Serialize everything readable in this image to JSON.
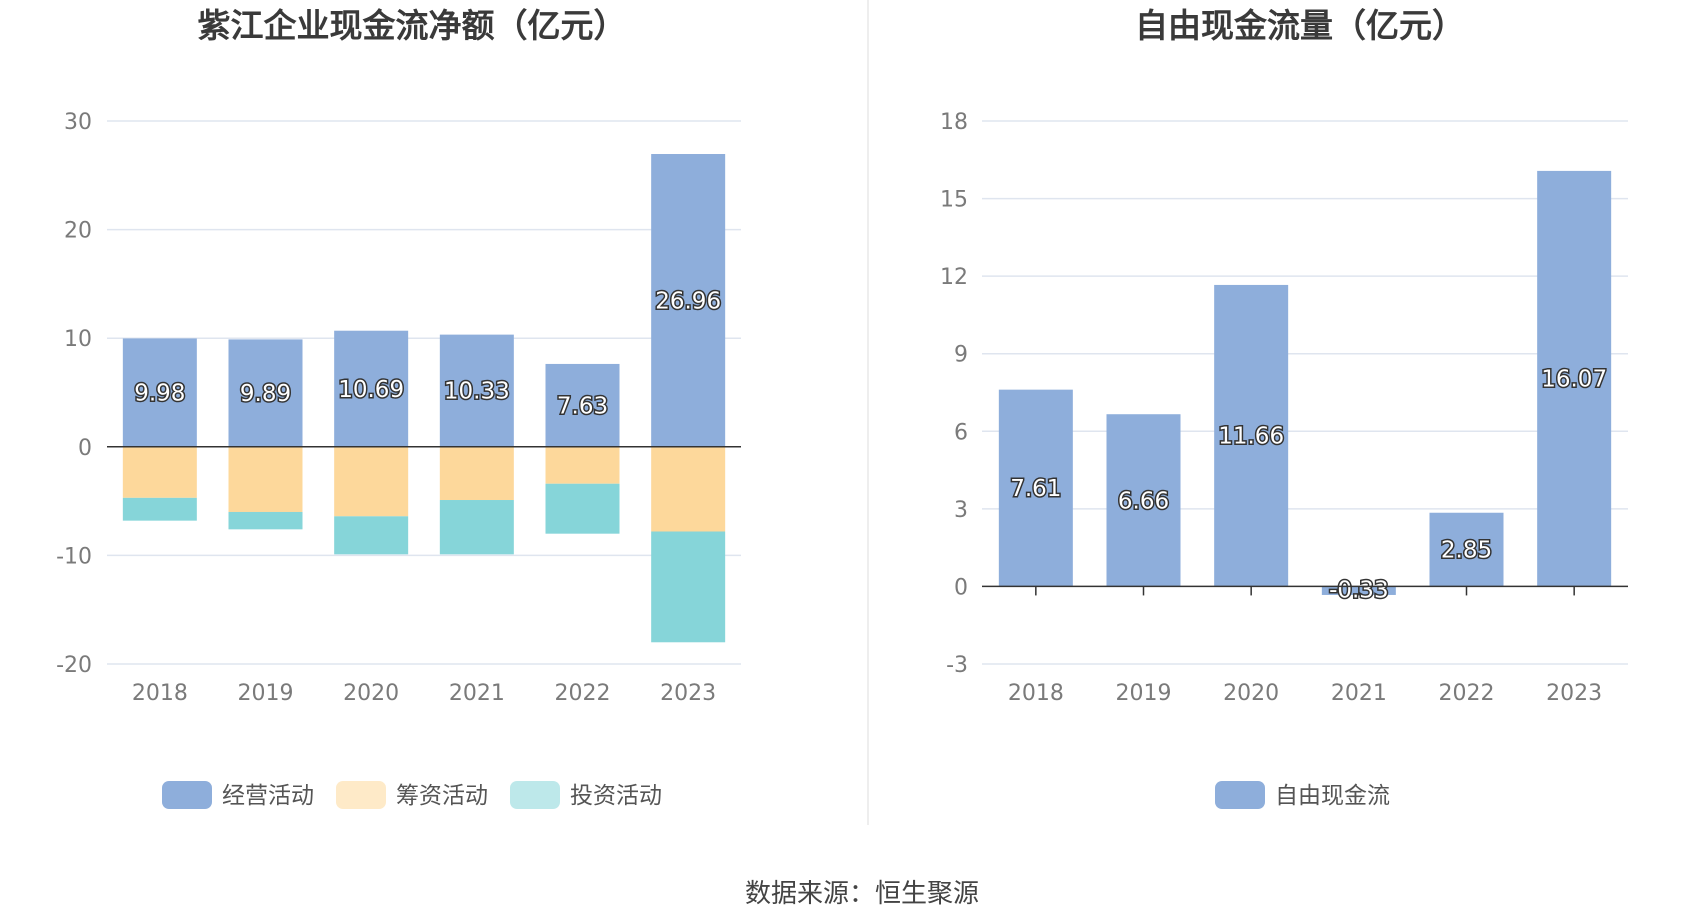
{
  "source_text": "数据来源：恒生聚源",
  "colors": {
    "operating": "#8eaedb",
    "financing": "#fdd89b",
    "investing": "#86d5d9",
    "free_cash": "#8eaedb",
    "grid": "#dfe5ef",
    "axis": "#333333"
  },
  "chart_data": [
    {
      "type": "bar",
      "stacked": true,
      "title": "紫江企业现金流净额（亿元）",
      "categories": [
        "2018",
        "2019",
        "2020",
        "2021",
        "2022",
        "2023"
      ],
      "ylim": [
        -20,
        30
      ],
      "yticks": [
        30,
        20,
        10,
        0,
        -10,
        -20
      ],
      "legend_position": "bottom",
      "series": [
        {
          "name": "经营活动",
          "values": [
            9.98,
            9.89,
            10.69,
            10.33,
            7.63,
            26.96
          ],
          "labels": [
            "9.98",
            "9.89",
            "10.69",
            "10.33",
            "7.63",
            "26.96"
          ],
          "color_key": "operating"
        },
        {
          "name": "筹资活动",
          "values": [
            -4.7,
            -6.0,
            -6.4,
            -4.9,
            -3.4,
            -7.8
          ],
          "color_key": "financing"
        },
        {
          "name": "投资活动",
          "values": [
            -2.1,
            -1.6,
            -3.5,
            -5.0,
            -4.6,
            -10.2
          ],
          "color_key": "investing"
        }
      ]
    },
    {
      "type": "bar",
      "title": "自由现金流量（亿元）",
      "categories": [
        "2018",
        "2019",
        "2020",
        "2021",
        "2022",
        "2023"
      ],
      "ylim": [
        -3,
        18
      ],
      "yticks": [
        18,
        15,
        12,
        9,
        6,
        3,
        0,
        -3
      ],
      "legend_position": "bottom",
      "series": [
        {
          "name": "自由现金流",
          "values": [
            7.61,
            6.66,
            11.66,
            -0.33,
            2.85,
            16.07
          ],
          "labels": [
            "7.61",
            "6.66",
            "11.66",
            "-0.33",
            "2.85",
            "16.07"
          ],
          "color_key": "free_cash"
        }
      ]
    }
  ]
}
